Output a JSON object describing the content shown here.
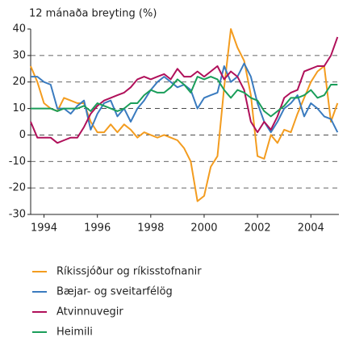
{
  "chart_data": {
    "type": "line",
    "title": "12 mánaða breyting (%)",
    "x": [
      1993.5,
      1993.75,
      1994,
      1994.25,
      1994.5,
      1994.75,
      1995,
      1995.25,
      1995.5,
      1995.75,
      1996,
      1996.25,
      1996.5,
      1996.75,
      1997,
      1997.25,
      1997.5,
      1997.75,
      1998,
      1998.25,
      1998.5,
      1998.75,
      1999,
      1999.25,
      1999.5,
      1999.75,
      2000,
      2000.25,
      2000.5,
      2000.75,
      2001,
      2001.25,
      2001.5,
      2001.75,
      2002,
      2002.25,
      2002.5,
      2002.75,
      2003,
      2003.25,
      2003.5,
      2003.75,
      2004,
      2004.25,
      2004.5,
      2004.75,
      2005
    ],
    "series": [
      {
        "name": "Ríkissjóður og ríkisstofnanir",
        "color": "#f39c1f",
        "values": [
          26,
          20,
          12,
          10,
          9,
          14,
          13,
          12,
          12,
          5,
          1,
          1,
          4,
          1,
          4,
          2,
          -1,
          1,
          0,
          -1,
          0,
          -1,
          -2,
          -5,
          -10,
          -25,
          -23,
          -12,
          -8,
          18,
          40,
          33,
          28,
          15,
          -8,
          -9,
          0,
          -3,
          2,
          1,
          8,
          14,
          20,
          24,
          26,
          5,
          12
        ]
      },
      {
        "name": "Bæjar- og sveitarfélög",
        "color": "#3a7bbf",
        "values": [
          22,
          22,
          20,
          19,
          10,
          10,
          8,
          11,
          13,
          2,
          8,
          12,
          13,
          7,
          10,
          5,
          10,
          13,
          17,
          20,
          22,
          20,
          18,
          19,
          17,
          10,
          14,
          15,
          16,
          26,
          20,
          22,
          27,
          22,
          12,
          5,
          1,
          5,
          10,
          12,
          15,
          7,
          12,
          10,
          7,
          6,
          1
        ]
      },
      {
        "name": "Atvinnuvegir",
        "color": "#b0105a",
        "values": [
          5,
          -1,
          -1,
          -1,
          -3,
          -2,
          -1,
          -1,
          3,
          8,
          11,
          13,
          14,
          15,
          16,
          18,
          21,
          22,
          21,
          22,
          23,
          21,
          25,
          22,
          22,
          24,
          22,
          24,
          26,
          21,
          24,
          22,
          17,
          5,
          1,
          5,
          2,
          7,
          14,
          16,
          17,
          24,
          25,
          26,
          26,
          30,
          37
        ]
      },
      {
        "name": "Heimili",
        "color": "#1a9e5a",
        "values": [
          10,
          10,
          10,
          10,
          9,
          10,
          10,
          10,
          11,
          9,
          12,
          11,
          10,
          9,
          10,
          12,
          12,
          15,
          17,
          16,
          16,
          18,
          21,
          19,
          16,
          22,
          21,
          22,
          21,
          17,
          14,
          17,
          16,
          14,
          13,
          9,
          7,
          9,
          11,
          14,
          14,
          15,
          17,
          14,
          15,
          19,
          19
        ]
      }
    ],
    "xlim": [
      1993.5,
      2005.05
    ],
    "xticks": [
      1994,
      1996,
      1998,
      2000,
      2002,
      2004
    ],
    "ylim": [
      -30,
      40
    ],
    "yticks": [
      -30,
      -20,
      -10,
      0,
      10,
      20,
      30,
      40
    ],
    "grid": true
  }
}
